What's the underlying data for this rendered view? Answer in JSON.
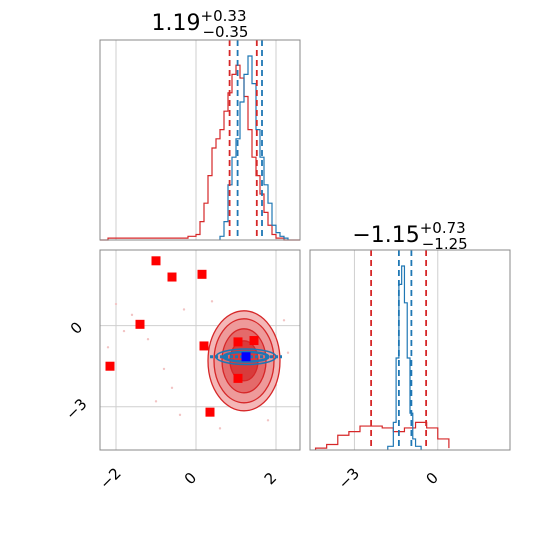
{
  "chart_data": {
    "type": "corner",
    "panels": [
      {
        "id": "p1-marginal",
        "kind": "histogram",
        "title": {
          "value": "1.19",
          "plus": "+0.33",
          "minus": "−0.35"
        },
        "xlim": [
          -2.4,
          2.6
        ],
        "gridlines_x": [
          -2,
          0,
          2
        ],
        "series": [
          {
            "name": "",
            "color": "#d62728",
            "bins": [
              -2.4,
              -2.2,
              -2.0,
              -1.8,
              -1.6,
              -1.4,
              -1.2,
              -1.0,
              -0.8,
              -0.6,
              -0.4,
              -0.2,
              0.0,
              0.1,
              0.2,
              0.3,
              0.4,
              0.5,
              0.6,
              0.7,
              0.8,
              0.9,
              1.0,
              1.1,
              1.2,
              1.3,
              1.4,
              1.5,
              1.6,
              1.7,
              1.8,
              1.9,
              2.0,
              2.2,
              2.4,
              2.6
            ],
            "counts": [
              0,
              0.01,
              0.01,
              0.01,
              0.01,
              0.01,
              0.01,
              0.01,
              0.01,
              0.01,
              0.01,
              0.02,
              0.03,
              0.1,
              0.2,
              0.35,
              0.5,
              0.55,
              0.6,
              0.7,
              0.8,
              0.9,
              0.95,
              0.88,
              0.78,
              0.6,
              0.45,
              0.35,
              0.25,
              0.15,
              0.08,
              0.03,
              0.01,
              0,
              0
            ]
          },
          {
            "name": "",
            "color": "#1f77b4",
            "bins": [
              0.6,
              0.7,
              0.8,
              0.9,
              1.0,
              1.1,
              1.2,
              1.3,
              1.4,
              1.5,
              1.6,
              1.7,
              1.8,
              1.9,
              2.0,
              2.1,
              2.2,
              2.3
            ],
            "counts": [
              0.02,
              0.1,
              0.3,
              0.45,
              0.55,
              0.75,
              0.9,
              1.0,
              0.85,
              0.6,
              0.45,
              0.3,
              0.2,
              0.08,
              0.04,
              0.02,
              0.01
            ]
          }
        ],
        "quantile_lines": [
          {
            "x": 0.84,
            "color": "#d62728"
          },
          {
            "x": 1.52,
            "color": "#d62728"
          },
          {
            "x": 1.04,
            "color": "#1f77b4"
          },
          {
            "x": 1.65,
            "color": "#1f77b4"
          }
        ]
      },
      {
        "id": "p2-marginal",
        "kind": "histogram",
        "title": {
          "value": "−1.15",
          "plus": "+0.73",
          "minus": "−1.25"
        },
        "xlim": [
          -4.6,
          2.6
        ],
        "gridlines_x": [
          -3,
          0
        ],
        "series": [
          {
            "name": "",
            "color": "#d62728",
            "bins": [
              -4.4,
              -4.0,
              -3.6,
              -3.2,
              -2.8,
              -2.4,
              -2.0,
              -1.6,
              -1.2,
              -0.8,
              -0.4,
              0.0,
              0.4
            ],
            "counts": [
              0.01,
              0.03,
              0.08,
              0.1,
              0.13,
              0.13,
              0.12,
              0.1,
              0.12,
              0.15,
              0.12,
              0.06,
              0.01
            ]
          },
          {
            "name": "",
            "color": "#1f77b4",
            "bins": [
              -1.8,
              -1.6,
              -1.5,
              -1.4,
              -1.3,
              -1.2,
              -1.1,
              -1.0,
              -0.9,
              -0.8,
              -0.6
            ],
            "counts": [
              0.02,
              0.15,
              0.5,
              0.9,
              1.0,
              0.8,
              0.5,
              0.2,
              0.06,
              0.02
            ]
          }
        ],
        "quantile_lines": [
          {
            "x": -2.4,
            "color": "#d62728"
          },
          {
            "x": -0.42,
            "color": "#d62728"
          },
          {
            "x": -1.4,
            "color": "#1f77b4"
          },
          {
            "x": -0.95,
            "color": "#1f77b4"
          }
        ]
      },
      {
        "id": "joint",
        "kind": "2d-contour",
        "xlim": [
          -2.4,
          2.6
        ],
        "ylim": [
          -4.6,
          2.8
        ],
        "gridlines_x": [
          -2,
          0,
          2
        ],
        "gridlines_y": [
          0,
          -3
        ],
        "red_markers": [
          {
            "x": -1.0,
            "y": 2.4
          },
          {
            "x": -0.6,
            "y": 1.8
          },
          {
            "x": 0.15,
            "y": 1.9
          },
          {
            "x": -1.4,
            "y": 0.05
          },
          {
            "x": -2.15,
            "y": -1.5
          },
          {
            "x": 0.2,
            "y": -0.75
          },
          {
            "x": 1.45,
            "y": -0.55
          },
          {
            "x": 1.05,
            "y": -0.6
          },
          {
            "x": 1.05,
            "y": -1.95
          },
          {
            "x": 0.35,
            "y": -3.2
          }
        ],
        "blue_marker": {
          "x": 1.25,
          "y": -1.15
        },
        "red_contour_center": {
          "x": 1.2,
          "y": -1.3
        },
        "blue_ellipse": {
          "cx": 1.25,
          "cy": -1.15,
          "rx": 0.75,
          "ry": 0.18
        }
      }
    ],
    "x_ticks": {
      "p1": [
        "−2",
        "0",
        "2"
      ],
      "p2": [
        "−3",
        "0"
      ]
    },
    "y_ticks": {
      "joint": [
        "0",
        "−3"
      ]
    }
  }
}
